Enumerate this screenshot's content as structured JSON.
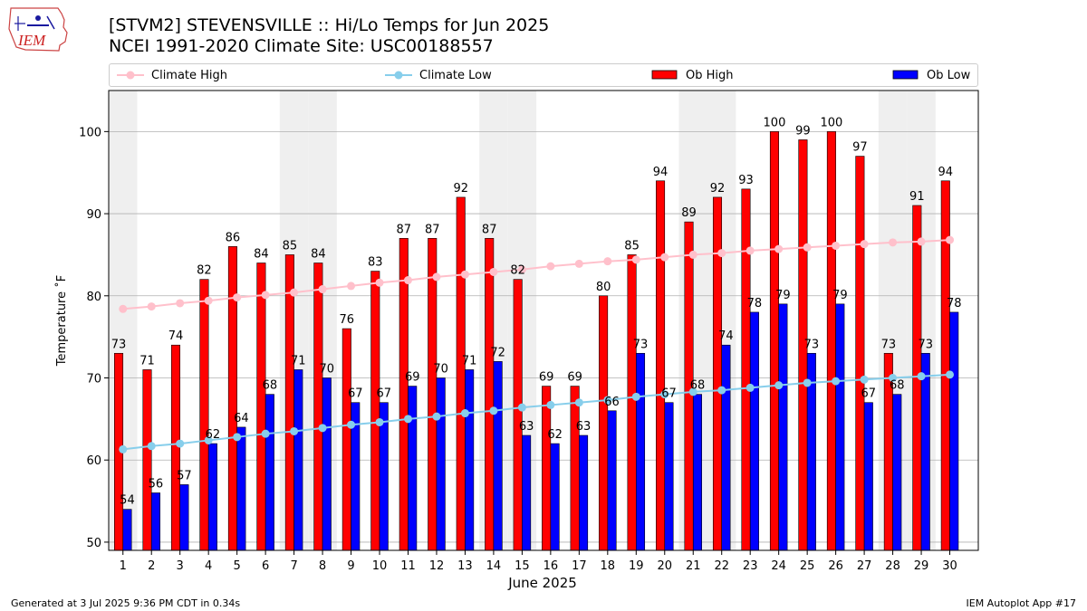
{
  "header": {
    "logo_text": "IEM",
    "title_line1": "[STVM2] STEVENSVILLE :: Hi/Lo Temps for Jun 2025",
    "title_line2": "NCEI 1991-2020 Climate Site: USC00188557"
  },
  "legend": {
    "items": [
      {
        "label": "Climate High",
        "kind": "line",
        "color": "#ffc0cb"
      },
      {
        "label": "Climate Low",
        "kind": "line",
        "color": "#87ceeb"
      },
      {
        "label": "Ob High",
        "kind": "bar",
        "color": "#ff0000"
      },
      {
        "label": "Ob Low",
        "kind": "bar",
        "color": "#0000ff"
      }
    ]
  },
  "chart_data": {
    "type": "bar",
    "xlabel": "June 2025",
    "ylabel": "Temperature ˚F",
    "ylim": [
      49,
      105
    ],
    "yticks": [
      50,
      60,
      70,
      80,
      90,
      100
    ],
    "grid": true,
    "legend_position": "top",
    "categories": [
      "1",
      "2",
      "3",
      "4",
      "5",
      "6",
      "7",
      "8",
      "9",
      "10",
      "11",
      "12",
      "13",
      "14",
      "15",
      "16",
      "17",
      "18",
      "19",
      "20",
      "21",
      "22",
      "23",
      "24",
      "25",
      "26",
      "27",
      "28",
      "29",
      "30"
    ],
    "weekend_shading_days": [
      1,
      7,
      8,
      14,
      15,
      21,
      22,
      28,
      29
    ],
    "series": [
      {
        "name": "Ob High",
        "kind": "bar",
        "color": "#ff0000",
        "values": [
          73,
          71,
          74,
          82,
          86,
          84,
          85,
          84,
          76,
          83,
          87,
          87,
          92,
          87,
          82,
          69,
          69,
          80,
          85,
          94,
          89,
          92,
          93,
          100,
          99,
          100,
          97,
          73,
          91,
          94
        ]
      },
      {
        "name": "Ob Low",
        "kind": "bar",
        "color": "#0000ff",
        "values": [
          54,
          56,
          57,
          62,
          64,
          68,
          71,
          70,
          67,
          67,
          69,
          70,
          71,
          72,
          63,
          62,
          63,
          66,
          73,
          67,
          68,
          74,
          78,
          79,
          73,
          79,
          67,
          68,
          73,
          78
        ]
      },
      {
        "name": "Climate High",
        "kind": "line",
        "color": "#ffc0cb",
        "values": [
          78.4,
          78.7,
          79.1,
          79.4,
          79.8,
          80.1,
          80.4,
          80.8,
          81.2,
          81.6,
          81.9,
          82.3,
          82.6,
          82.9,
          83.2,
          83.6,
          83.9,
          84.2,
          84.4,
          84.7,
          85.0,
          85.2,
          85.5,
          85.7,
          85.9,
          86.1,
          86.3,
          86.5,
          86.6,
          86.8
        ]
      },
      {
        "name": "Climate Low",
        "kind": "line",
        "color": "#87ceeb",
        "values": [
          61.3,
          61.7,
          62.0,
          62.4,
          62.8,
          63.2,
          63.5,
          63.9,
          64.3,
          64.6,
          65.0,
          65.3,
          65.7,
          66.0,
          66.4,
          66.7,
          67.0,
          67.3,
          67.7,
          68.0,
          68.3,
          68.5,
          68.8,
          69.1,
          69.4,
          69.6,
          69.8,
          70.0,
          70.2,
          70.4
        ]
      }
    ]
  },
  "footer": {
    "left": "Generated at 3 Jul 2025 9:36 PM CDT in 0.34s",
    "right": "IEM Autoplot App #17"
  }
}
